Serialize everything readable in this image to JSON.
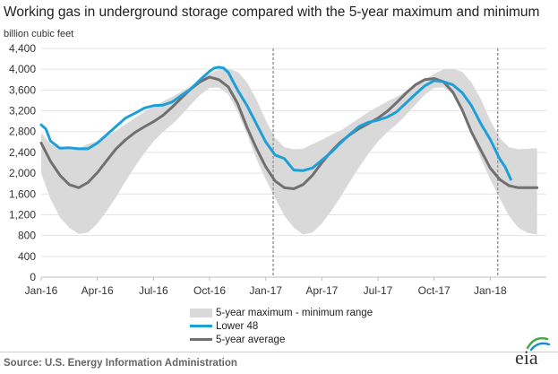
{
  "title": "Working gas in underground  storage compared with the 5-year maximum and minimum",
  "source": "Source:  U.S. Energy Information Administration",
  "logo_text": "eia",
  "colors": {
    "range": "#d9d9d9",
    "lower48": "#1e9fd8",
    "average": "#707070",
    "grid": "#e3e3e3",
    "marker": "#999999",
    "logo_green": "#4aa84a",
    "logo_blue": "#1a8fd0"
  },
  "chart_data": {
    "type": "area",
    "title": "Working gas in underground  storage compared with the 5-year maximum and minimum",
    "ylabel": "billion cubic feet",
    "xlabel": "",
    "ylim": [
      0,
      4400
    ],
    "yticks": [
      0,
      400,
      800,
      1200,
      1600,
      2000,
      2400,
      2800,
      3200,
      3600,
      4000,
      4400
    ],
    "ytick_labels": [
      "0",
      "400",
      "800",
      "1,200",
      "1,600",
      "2,000",
      "2,400",
      "2,800",
      "3,200",
      "3,600",
      "4,000",
      "4,400"
    ],
    "xticks": [
      {
        "label": "Jan-16",
        "x": 0
      },
      {
        "label": "Apr-16",
        "x": 3
      },
      {
        "label": "Jul-16",
        "x": 6
      },
      {
        "label": "Oct-16",
        "x": 9
      },
      {
        "label": "Jan-17",
        "x": 12
      },
      {
        "label": "Apr-17",
        "x": 15
      },
      {
        "label": "Jul-17",
        "x": 18
      },
      {
        "label": "Oct-17",
        "x": 21
      },
      {
        "label": "Jan-18",
        "x": 24
      }
    ],
    "x_unit_note": "months since Jan-16",
    "xlim": [
      0,
      27
    ],
    "grid": true,
    "vertical_markers": [
      {
        "x": 12.4,
        "style": "dashed"
      },
      {
        "x": 24.4,
        "style": "dashed"
      }
    ],
    "legend_position": "bottom",
    "series": [
      {
        "name": "5-year maximum - minimum range",
        "kind": "band",
        "x": [
          0,
          0.5,
          1,
          1.5,
          2,
          2.5,
          3,
          3.5,
          4,
          4.5,
          5,
          5.5,
          6,
          6.5,
          7,
          7.5,
          8,
          8.5,
          9,
          9.5,
          10,
          10.5,
          11,
          11.5,
          12,
          12.5,
          13,
          13.5,
          14,
          14.5,
          15,
          15.5,
          16,
          16.5,
          17,
          17.5,
          18,
          18.5,
          19,
          19.5,
          20,
          20.5,
          21,
          21.5,
          22,
          22.5,
          23,
          23.5,
          24,
          24.5,
          25,
          25.5,
          26,
          26.5
        ],
        "max": [
          2780,
          2560,
          2480,
          2460,
          2480,
          2560,
          2620,
          2720,
          2820,
          2940,
          3060,
          3180,
          3280,
          3380,
          3470,
          3570,
          3680,
          3800,
          3910,
          4000,
          4010,
          3950,
          3750,
          3420,
          3020,
          2680,
          2500,
          2460,
          2470,
          2560,
          2640,
          2740,
          2820,
          2940,
          3060,
          3180,
          3280,
          3380,
          3470,
          3570,
          3680,
          3800,
          3910,
          4000,
          4010,
          3950,
          3750,
          3420,
          3020,
          2680,
          2500,
          2460,
          2470,
          2480
        ],
        "min": [
          2000,
          1500,
          1150,
          950,
          830,
          860,
          1030,
          1270,
          1540,
          1840,
          2120,
          2380,
          2610,
          2790,
          2940,
          3120,
          3320,
          3510,
          3640,
          3650,
          3520,
          3180,
          2750,
          2280,
          1880,
          1520,
          1180,
          950,
          820,
          860,
          1030,
          1270,
          1540,
          1840,
          2120,
          2380,
          2610,
          2790,
          2940,
          3120,
          3320,
          3510,
          3640,
          3650,
          3520,
          3180,
          2750,
          2280,
          1880,
          1520,
          1180,
          950,
          850,
          820
        ]
      },
      {
        "name": "Lower 48",
        "kind": "line",
        "x": [
          0,
          0.25,
          0.5,
          1,
          1.5,
          2,
          2.5,
          3,
          3.5,
          4,
          4.5,
          5,
          5.5,
          6,
          6.5,
          7,
          7.5,
          8,
          8.5,
          9,
          9.25,
          9.5,
          9.75,
          10,
          10.5,
          11,
          11.5,
          12,
          12.5,
          13,
          13.5,
          14,
          14.5,
          15,
          15.5,
          16,
          16.5,
          17,
          17.5,
          18,
          18.5,
          19,
          19.5,
          20,
          20.5,
          21,
          21.5,
          22,
          22.5,
          23,
          23.5,
          24,
          24.5,
          24.8,
          25.1
        ],
        "values": [
          2930,
          2850,
          2620,
          2480,
          2490,
          2470,
          2470,
          2580,
          2740,
          2900,
          3060,
          3150,
          3250,
          3300,
          3310,
          3370,
          3500,
          3620,
          3800,
          3960,
          4020,
          4040,
          4020,
          3940,
          3600,
          3300,
          2950,
          2600,
          2350,
          2280,
          2060,
          2050,
          2100,
          2250,
          2400,
          2580,
          2750,
          2900,
          2980,
          3020,
          3080,
          3180,
          3350,
          3520,
          3680,
          3780,
          3760,
          3700,
          3550,
          3300,
          2950,
          2650,
          2280,
          2120,
          1880
        ]
      },
      {
        "name": "5-year average",
        "kind": "line",
        "x": [
          0,
          0.5,
          1,
          1.5,
          2,
          2.5,
          3,
          3.5,
          4,
          4.5,
          5,
          5.5,
          6,
          6.5,
          7,
          7.5,
          8,
          8.5,
          9,
          9.5,
          10,
          10.5,
          11,
          11.5,
          12,
          12.5,
          13,
          13.5,
          14,
          14.5,
          15,
          15.5,
          16,
          16.5,
          17,
          17.5,
          18,
          18.5,
          19,
          19.5,
          20,
          20.5,
          21,
          21.5,
          22,
          22.5,
          23,
          23.5,
          24,
          24.5,
          25,
          25.5,
          26,
          26.5
        ],
        "values": [
          2580,
          2230,
          1960,
          1780,
          1720,
          1820,
          2010,
          2240,
          2470,
          2640,
          2780,
          2890,
          2990,
          3110,
          3270,
          3450,
          3620,
          3760,
          3850,
          3800,
          3660,
          3340,
          2880,
          2480,
          2120,
          1850,
          1720,
          1700,
          1780,
          1960,
          2200,
          2420,
          2600,
          2740,
          2860,
          2960,
          3060,
          3190,
          3360,
          3540,
          3700,
          3800,
          3820,
          3760,
          3560,
          3220,
          2790,
          2440,
          2100,
          1880,
          1760,
          1720,
          1720,
          1720
        ]
      }
    ]
  }
}
